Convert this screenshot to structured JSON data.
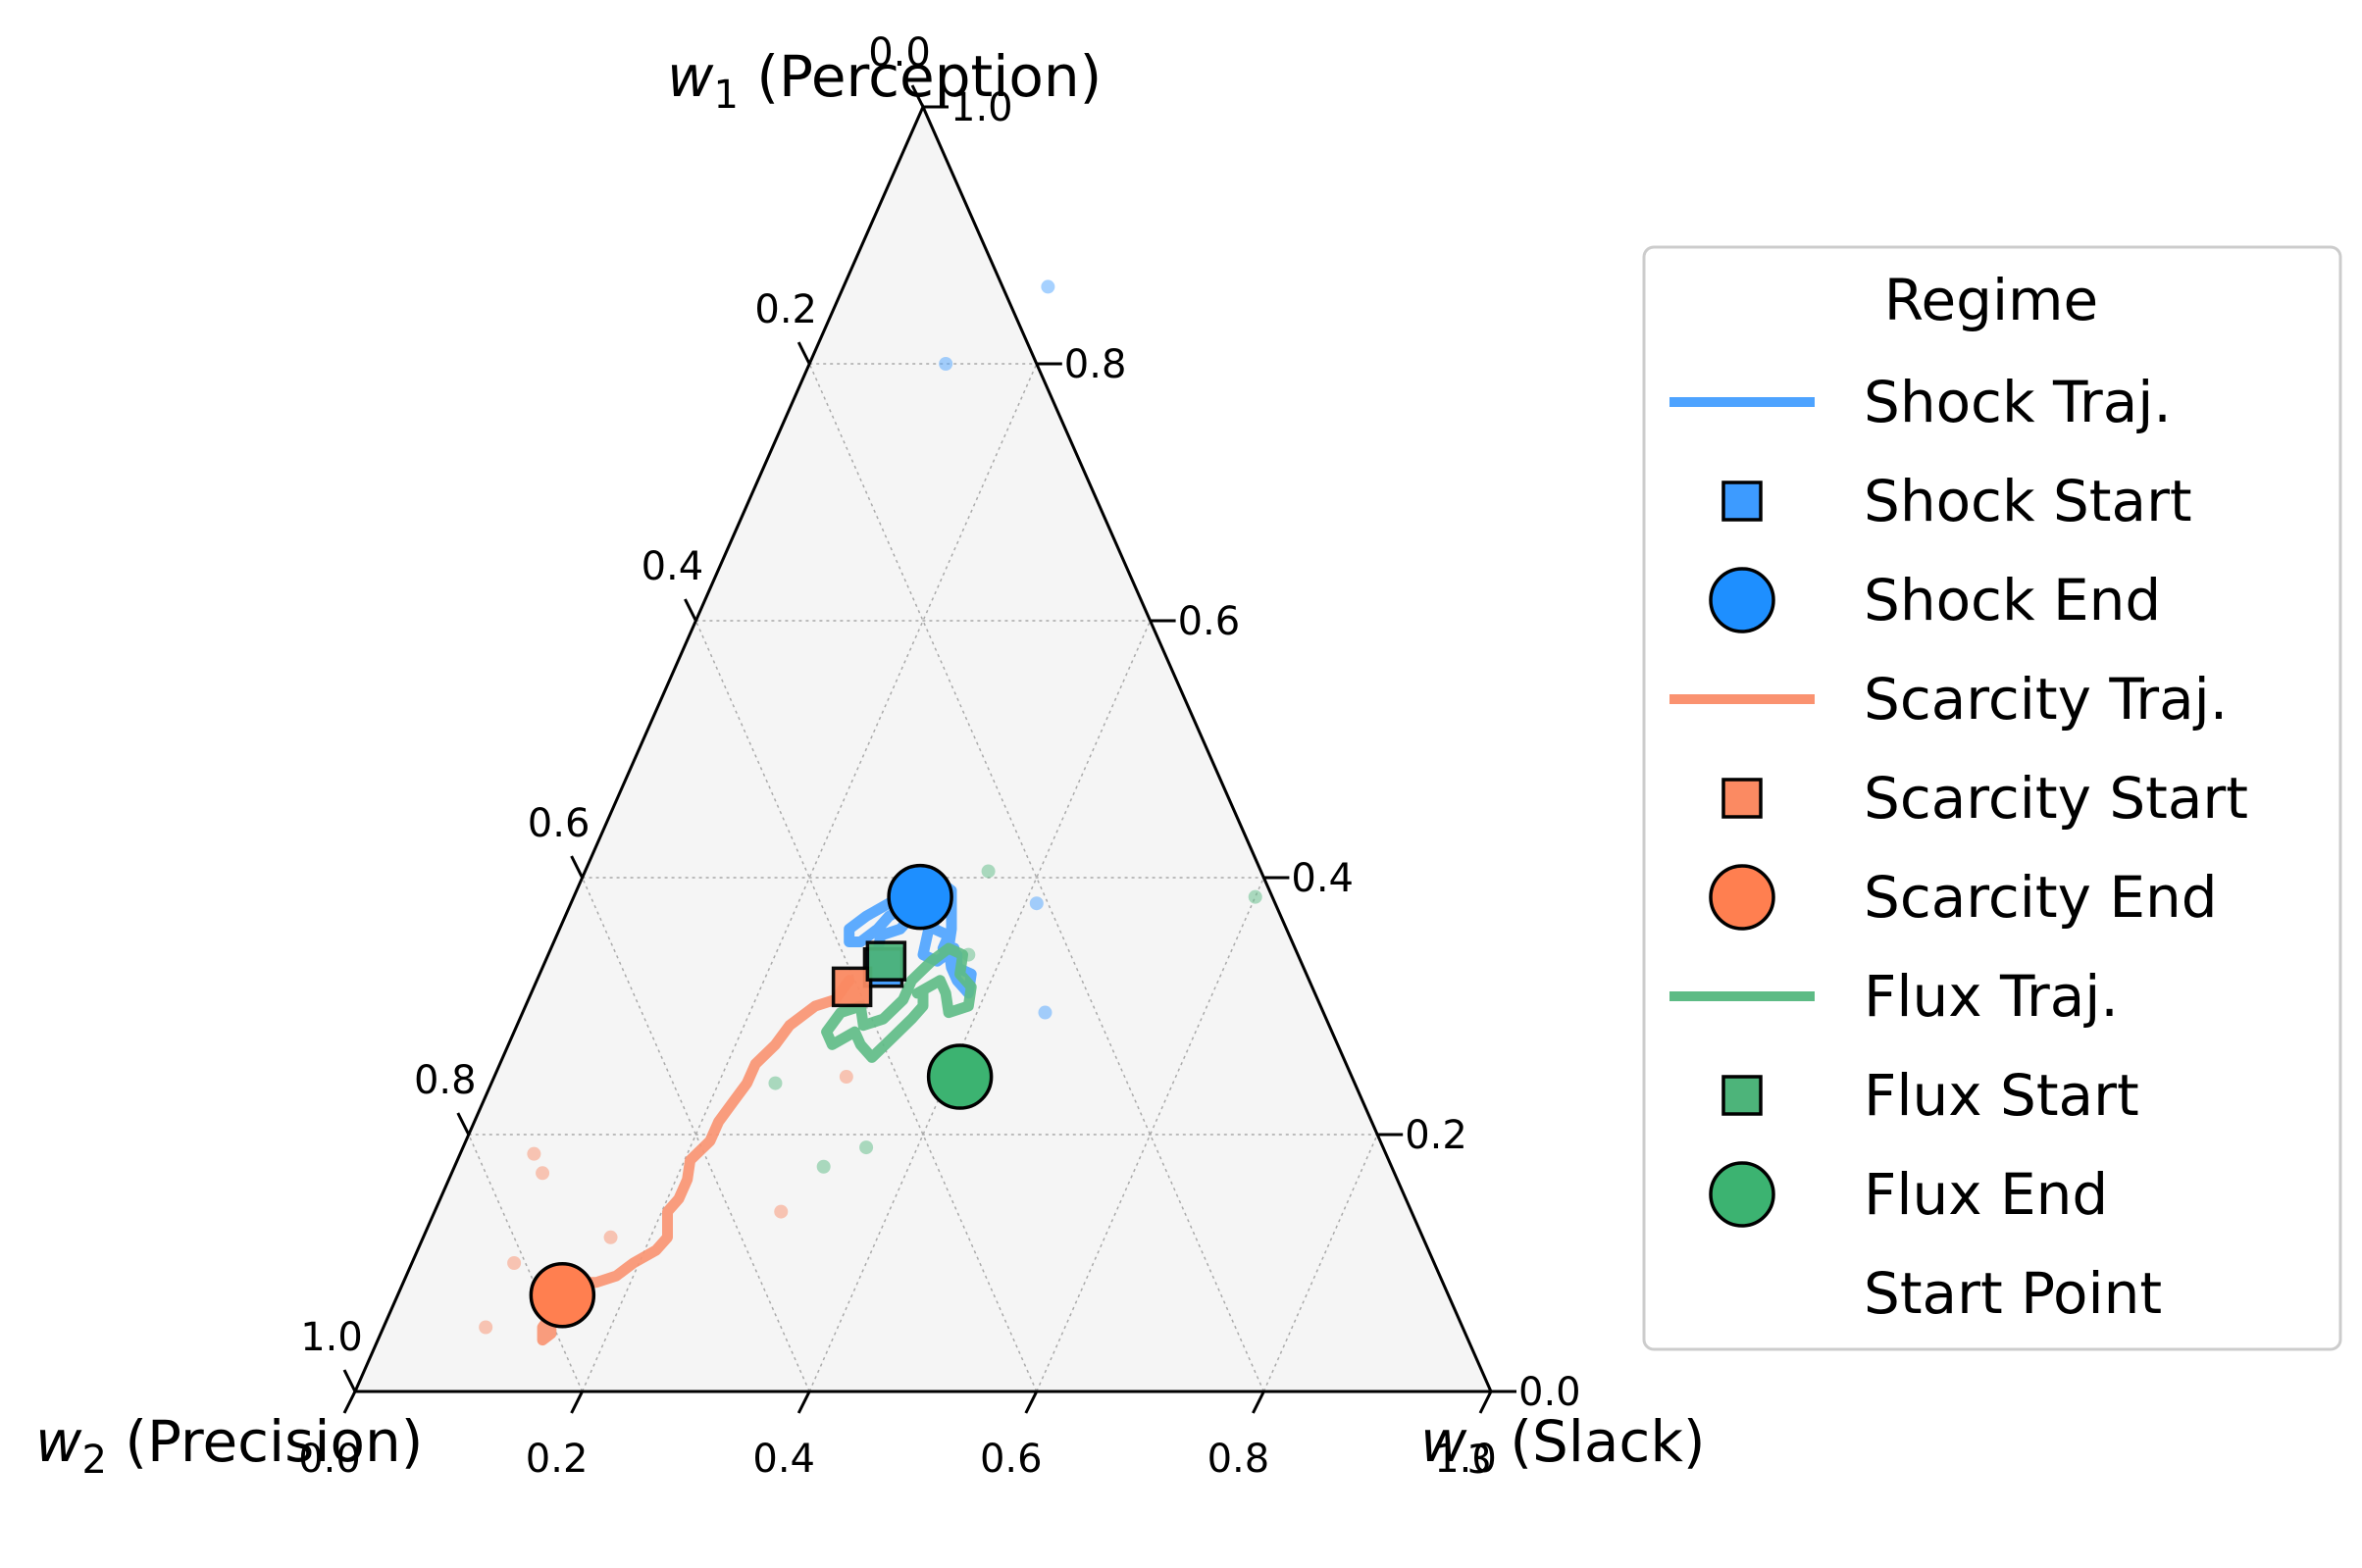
{
  "chart_data": {
    "type": "ternary-scatter",
    "axes": {
      "top": {
        "label_sym": "w",
        "label_sub": "1",
        "label_rest": " (Perception)"
      },
      "left": {
        "label_sym": "w",
        "label_sub": "2",
        "label_rest": " (Precision)"
      },
      "right": {
        "label_sym": "w",
        "label_sub": "3",
        "label_rest": " (Slack)"
      }
    },
    "ticks": {
      "bottom": [
        "0.0",
        "0.2",
        "0.4",
        "0.6",
        "0.8",
        "1.0"
      ],
      "left": [
        "0.0",
        "0.2",
        "0.4",
        "0.6",
        "0.8",
        "1.0"
      ],
      "right": [
        "0.0",
        "0.2",
        "0.4",
        "0.6",
        "0.8",
        "1.0"
      ]
    },
    "tick_values": [
      0,
      0.2,
      0.4,
      0.6,
      0.8,
      1.0
    ],
    "grid": true,
    "legend": {
      "title": "Regime",
      "placement": "right",
      "entries": [
        {
          "label": "Shock Traj.",
          "kind": "line",
          "color": "#4da3ff"
        },
        {
          "label": "Shock Start",
          "kind": "square",
          "color": "#3d9bff"
        },
        {
          "label": "Shock End",
          "kind": "circle",
          "color": "#1e8fff"
        },
        {
          "label": "Scarcity Traj.",
          "kind": "line",
          "color": "#fa9270"
        },
        {
          "label": "Scarcity Start",
          "kind": "square",
          "color": "#fb8a62"
        },
        {
          "label": "Scarcity End",
          "kind": "circle",
          "color": "#ff7f50"
        },
        {
          "label": "Flux Traj.",
          "kind": "line",
          "color": "#5dbb85"
        },
        {
          "label": "Flux Start",
          "kind": "square",
          "color": "#4db47a"
        },
        {
          "label": "Flux End",
          "kind": "circle",
          "color": "#3cb371"
        },
        {
          "label": "Start Point",
          "kind": "none",
          "color": "#ffffff"
        }
      ]
    },
    "series": [
      {
        "name": "Shock",
        "color": "#4da3ff",
        "trajectory": [
          [
            0.33,
            0.3
          ],
          [
            0.34,
            0.29
          ],
          [
            0.355,
            0.285
          ],
          [
            0.36,
            0.3
          ],
          [
            0.37,
            0.305
          ],
          [
            0.385,
            0.295
          ],
          [
            0.39,
            0.31
          ],
          [
            0.375,
            0.32
          ],
          [
            0.36,
            0.33
          ],
          [
            0.355,
            0.345
          ],
          [
            0.345,
            0.345
          ],
          [
            0.34,
            0.36
          ],
          [
            0.33,
            0.365
          ],
          [
            0.325,
            0.38
          ],
          [
            0.31,
            0.385
          ],
          [
            0.32,
            0.37
          ],
          [
            0.33,
            0.36
          ],
          [
            0.345,
            0.35
          ],
          [
            0.36,
            0.345
          ],
          [
            0.37,
            0.34
          ],
          [
            0.38,
            0.335
          ],
          [
            0.39,
            0.33
          ],
          [
            0.395,
            0.32
          ],
          [
            0.385,
            0.31
          ],
          [
            0.38,
            0.3
          ],
          [
            0.37,
            0.285
          ],
          [
            0.36,
            0.28
          ],
          [
            0.35,
            0.27
          ],
          [
            0.35,
            0.26
          ],
          [
            0.36,
            0.255
          ],
          [
            0.37,
            0.265
          ],
          [
            0.38,
            0.28
          ],
          [
            0.39,
            0.29
          ],
          [
            0.4,
            0.305
          ],
          [
            0.38,
            0.32
          ],
          [
            0.36,
            0.325
          ],
          [
            0.34,
            0.33
          ],
          [
            0.335,
            0.345
          ],
          [
            0.345,
            0.355
          ]
        ],
        "start": [
          0.33,
          0.3
        ],
        "end": [
          0.385,
          0.305
        ],
        "scatter": [
          [
            0.295,
            0.46
          ],
          [
            0.25,
            0.4
          ],
          [
            0.38,
            0.41
          ],
          [
            0.8,
            0.12
          ],
          [
            0.86,
            0.18
          ]
        ]
      },
      {
        "name": "Scarcity",
        "color": "#fa9270",
        "trajectory": [
          [
            0.32,
            0.275
          ],
          [
            0.305,
            0.27
          ],
          [
            0.3,
            0.255
          ],
          [
            0.285,
            0.24
          ],
          [
            0.27,
            0.235
          ],
          [
            0.255,
            0.225
          ],
          [
            0.24,
            0.225
          ],
          [
            0.225,
            0.22
          ],
          [
            0.21,
            0.215
          ],
          [
            0.195,
            0.215
          ],
          [
            0.18,
            0.205
          ],
          [
            0.165,
            0.21
          ],
          [
            0.15,
            0.21
          ],
          [
            0.14,
            0.205
          ],
          [
            0.13,
            0.21
          ],
          [
            0.12,
            0.215
          ],
          [
            0.11,
            0.21
          ],
          [
            0.1,
            0.195
          ],
          [
            0.09,
            0.185
          ],
          [
            0.085,
            0.17
          ],
          [
            0.085,
            0.155
          ],
          [
            0.075,
            0.15
          ],
          [
            0.055,
            0.145
          ],
          [
            0.045,
            0.15
          ],
          [
            0.04,
            0.145
          ],
          [
            0.05,
            0.14
          ],
          [
            0.065,
            0.145
          ]
        ],
        "start": [
          0.315,
          0.28
        ],
        "end": [
          0.075,
          0.145
        ],
        "scatter": [
          [
            0.05,
            0.09
          ],
          [
            0.1,
            0.09
          ],
          [
            0.17,
            0.08
          ],
          [
            0.12,
            0.165
          ],
          [
            0.185,
            0.065
          ],
          [
            0.245,
            0.31
          ],
          [
            0.14,
            0.305
          ]
        ]
      },
      {
        "name": "Flux",
        "color": "#5dbb85",
        "trajectory": [
          [
            0.31,
            0.345
          ],
          [
            0.3,
            0.35
          ],
          [
            0.29,
            0.345
          ],
          [
            0.275,
            0.335
          ],
          [
            0.26,
            0.325
          ],
          [
            0.27,
            0.31
          ],
          [
            0.28,
            0.3
          ],
          [
            0.27,
            0.285
          ],
          [
            0.28,
            0.275
          ],
          [
            0.295,
            0.28
          ],
          [
            0.3,
            0.295
          ],
          [
            0.285,
            0.305
          ],
          [
            0.29,
            0.32
          ],
          [
            0.305,
            0.33
          ],
          [
            0.32,
            0.33
          ],
          [
            0.335,
            0.34
          ],
          [
            0.345,
            0.35
          ],
          [
            0.34,
            0.365
          ],
          [
            0.325,
            0.37
          ],
          [
            0.315,
            0.385
          ],
          [
            0.3,
            0.39
          ],
          [
            0.295,
            0.375
          ],
          [
            0.31,
            0.365
          ],
          [
            0.32,
            0.355
          ],
          [
            0.31,
            0.34
          ]
        ],
        "start": [
          0.335,
          0.3
        ],
        "end": [
          0.245,
          0.41
        ],
        "scatter": [
          [
            0.385,
            0.6
          ],
          [
            0.175,
            0.325
          ],
          [
            0.19,
            0.355
          ],
          [
            0.25,
            0.4
          ],
          [
            0.405,
            0.355
          ],
          [
            0.34,
            0.37
          ],
          [
            0.24,
            0.25
          ]
        ]
      }
    ]
  }
}
